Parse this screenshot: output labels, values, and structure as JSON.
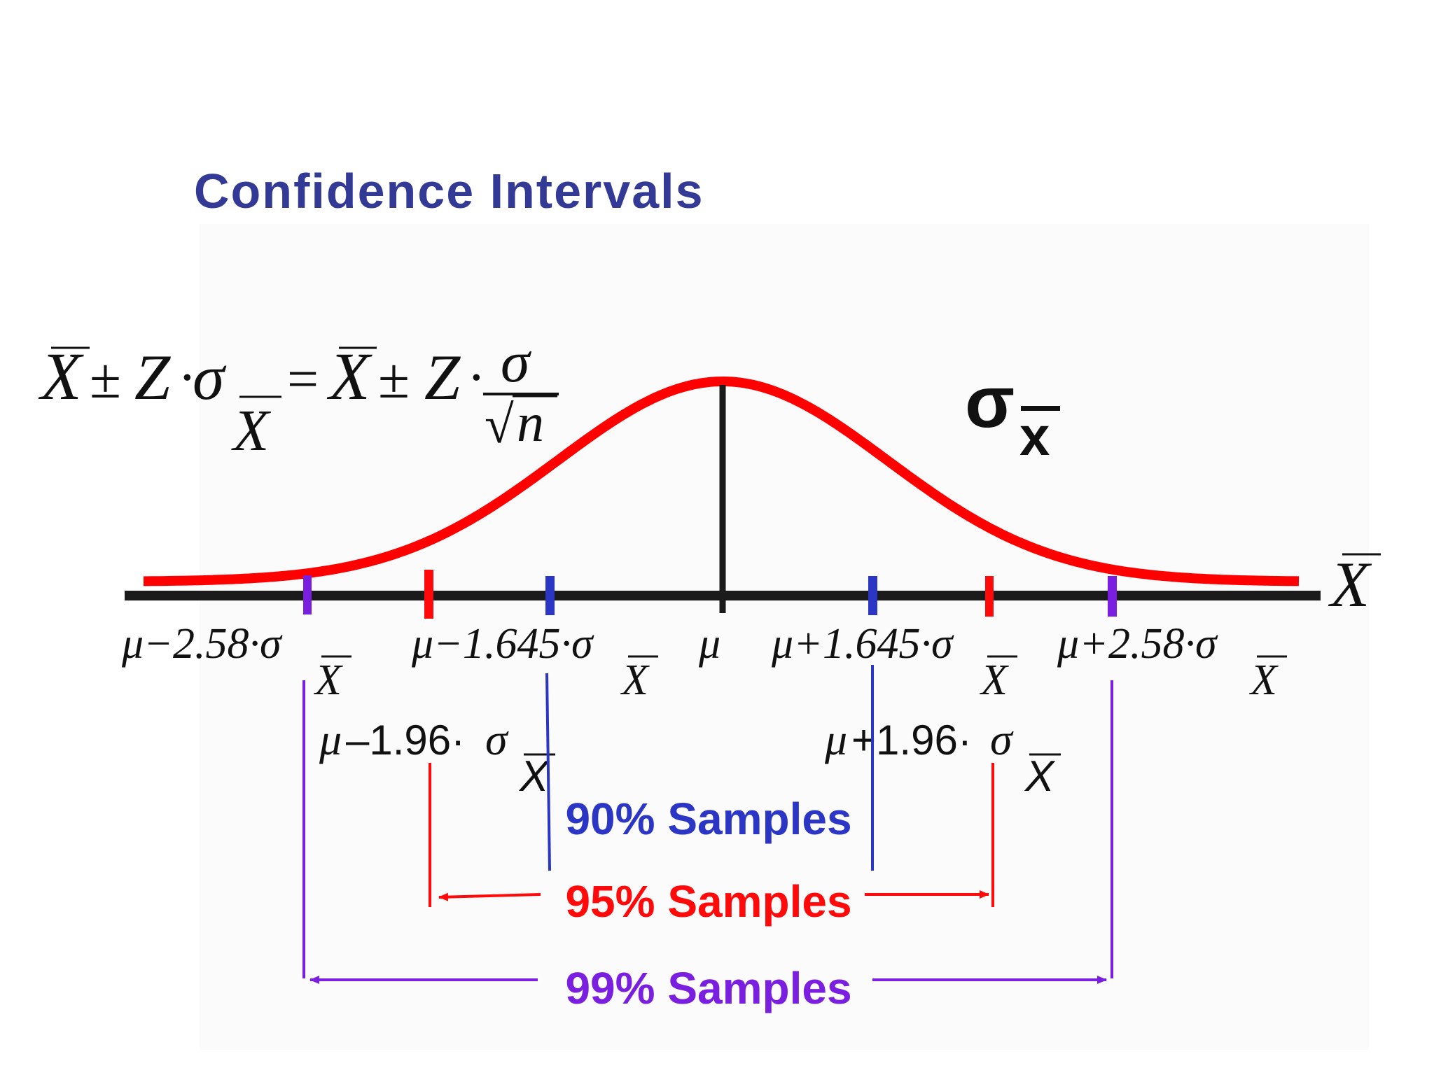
{
  "title": "Confidence Intervals",
  "formula": {
    "xbar": "X",
    "plus_minus": "±",
    "z": "Z",
    "dot": "·",
    "sigma": "σ",
    "equals": "=",
    "sqrt": "√",
    "n": "n"
  },
  "sigma_xbar_label": {
    "sigma": "σ",
    "subscript": "x"
  },
  "axis_label": "X",
  "center_label": "μ",
  "bounds": {
    "m258": {
      "prefix": "μ−2.58·σ",
      "sub": "X"
    },
    "m1645": {
      "prefix": "μ−1.645·σ",
      "sub": "X"
    },
    "p1645": {
      "prefix": "μ+1.645·σ",
      "sub": "X"
    },
    "p258": {
      "prefix": "μ+2.58·σ",
      "sub": "X"
    },
    "m196_mu": "μ",
    "m196_rest": "–1.96·",
    "m196_sigma": "σ",
    "m196_sub": "X",
    "p196_mu": "μ",
    "p196_rest": "+1.96·",
    "p196_sigma": "σ",
    "p196_sub": "X"
  },
  "intervals": [
    {
      "label": "90% Samples",
      "color": "#2b36c4"
    },
    {
      "label": "95% Samples",
      "color": "#ff0a0a"
    },
    {
      "label": "99% Samples",
      "color": "#7a1fe0"
    }
  ],
  "colors": {
    "title": "#333a96",
    "curve": "#ff0000",
    "axis": "#1b1b1b",
    "blue": "#2b36c4",
    "red": "#ff0a0a",
    "purple": "#7a1fe0",
    "text": "#111111"
  },
  "icons": {
    "arrowhead": "arrowhead-icon"
  }
}
